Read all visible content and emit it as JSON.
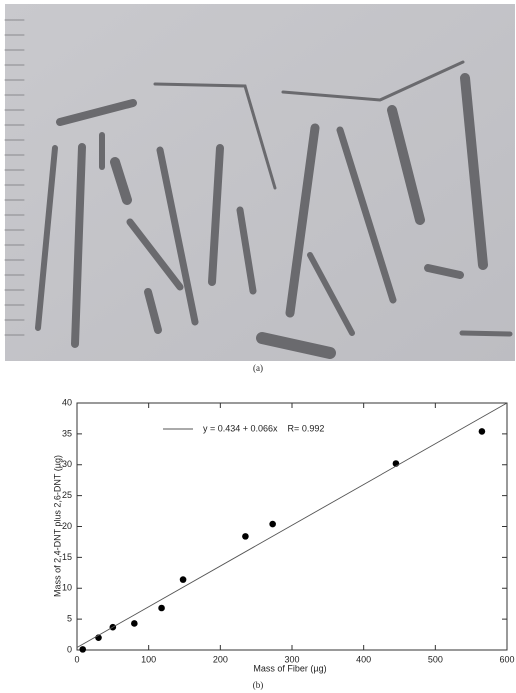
{
  "photo": {
    "caption": "(a)"
  },
  "chart_data": {
    "type": "scatter",
    "caption": "(b)",
    "x_label": "Mass of Fiber (µg)",
    "y_label": "Mass of 2,4-DNT plus 2,6-DNT (µg)",
    "series": [
      {
        "type": "scatter",
        "color": "#000000",
        "x": [
          8,
          30,
          50,
          80,
          118,
          148,
          235,
          273,
          445,
          565
        ],
        "values": [
          0.1,
          2,
          3.7,
          4.3,
          6.8,
          11.4,
          18.4,
          20.4,
          30.2,
          35.4
        ]
      },
      {
        "type": "line",
        "name": "y = 0.434 + 0.066x    R= 0.992",
        "color": "#555555",
        "x": [
          0,
          600
        ],
        "values": [
          0.4,
          40
        ]
      }
    ],
    "legend": "upper left",
    "xlim": [
      0,
      600
    ],
    "xticks": [
      0,
      100,
      200,
      300,
      400,
      500,
      600
    ],
    "ylim": [
      0,
      40
    ],
    "yticks": [
      0,
      5,
      10,
      15,
      20,
      25,
      30,
      35,
      40
    ]
  }
}
